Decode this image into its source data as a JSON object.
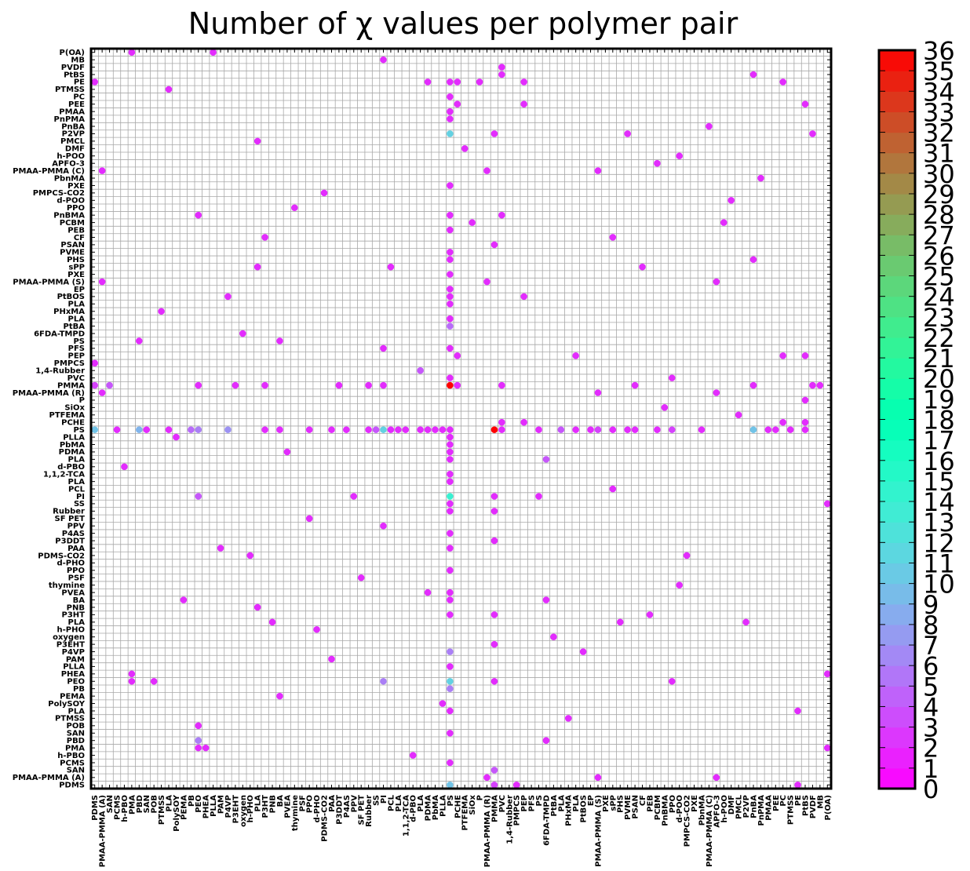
{
  "chart_data": {
    "type": "scatter",
    "title": "Number of χ values per polymer pair",
    "xlabel": "",
    "ylabel": "",
    "grid": true,
    "legend": "colorbar-right",
    "colormap": "rainbow",
    "colorbar": {
      "min": 0,
      "max": 36,
      "ticks": [
        "0",
        "1",
        "2",
        "3",
        "4",
        "5",
        "6",
        "7",
        "8",
        "9",
        "10",
        "11",
        "12",
        "13",
        "14",
        "15",
        "16",
        "17",
        "18",
        "19",
        "20",
        "21",
        "22",
        "23",
        "24",
        "25",
        "26",
        "27",
        "28",
        "29",
        "30",
        "31",
        "32",
        "33",
        "34",
        "35",
        "36"
      ]
    },
    "x_categories": [
      "PDMS",
      "PMAA-PMMA (A)",
      "SAN",
      "PCMS",
      "h-PBO",
      "PMA",
      "PBD",
      "SAN",
      "POB",
      "PTMSS",
      "PLA",
      "PolySOY",
      "PEMA",
      "PB",
      "PEO",
      "PHEA",
      "PLLA",
      "PAM",
      "P4VP",
      "P3EHT",
      "oxygen",
      "h-PHO",
      "PLA",
      "P3HT",
      "PNB",
      "BA",
      "PVEA",
      "thymine",
      "PSF",
      "PPO",
      "d-PHO",
      "PDMS-CO2",
      "PAA",
      "P3DDT",
      "P4AS",
      "PPV",
      "SF PET",
      "Rubber",
      "SS",
      "PI",
      "PCL",
      "PLA",
      "1,1,2-TCA",
      "d-PBO",
      "PLA",
      "PDMA",
      "PbMA",
      "PLLA",
      "PS",
      "PCHE",
      "PTFEMA",
      "SiOx",
      "P",
      "PMAA-PMMA (R)",
      "PMMA",
      "PVC",
      "1,4-Rubber",
      "PMPCS",
      "PEP",
      "PFS",
      "PS",
      "6FDA-TMPD",
      "PtBA",
      "PLA",
      "PHxMA",
      "PLA",
      "PtBOS",
      "EP",
      "PMAA-PMMA (S)",
      "PXE",
      "sPP",
      "PHS",
      "PVME",
      "PSAN",
      "CF",
      "PEB",
      "PCBM",
      "PnBMA",
      "PPO",
      "d-POO",
      "PMPCS-CO2",
      "PXE",
      "PbnMA",
      "PMAA-PMMA (C)",
      "APFO-3",
      "h-POO",
      "DMF",
      "PMCL",
      "P2VP",
      "PnBA",
      "PnPMA",
      "PMAA",
      "PEE",
      "PC",
      "PTMSS",
      "PE",
      "PtBS",
      "PVDF",
      "MB",
      "P(OA)"
    ],
    "y_categories": [
      "P(OA)",
      "MB",
      "PVDF",
      "PtBS",
      "PE",
      "PTMSS",
      "PC",
      "PEE",
      "PMAA",
      "PnPMA",
      "PnBA",
      "P2VP",
      "PMCL",
      "DMF",
      "h-POO",
      "APFO-3",
      "PMAA-PMMA (C)",
      "PbnMA",
      "PXE",
      "PMPCS-CO2",
      "d-POO",
      "PPO",
      "PnBMA",
      "PCBM",
      "PEB",
      "CF",
      "PSAN",
      "PVME",
      "PHS",
      "sPP",
      "PXE",
      "PMAA-PMMA (S)",
      "EP",
      "PtBOS",
      "PLA",
      "PHxMA",
      "PLA",
      "PtBA",
      "6FDA-TMPD",
      "PS",
      "PFS",
      "PEP",
      "PMPCS",
      "1,4-Rubber",
      "PVC",
      "PMMA",
      "PMAA-PMMA (R)",
      "P",
      "SiOx",
      "PTFEMA",
      "PCHE",
      "PS",
      "PLLA",
      "PbMA",
      "PDMA",
      "PLA",
      "d-PBO",
      "1,1,2-TCA",
      "PLA",
      "PCL",
      "PI",
      "SS",
      "Rubber",
      "SF PET",
      "PPV",
      "P4AS",
      "P3DDT",
      "PAA",
      "PDMS-CO2",
      "d-PHO",
      "PPO",
      "PSF",
      "thymine",
      "PVEA",
      "BA",
      "PNB",
      "P3HT",
      "PLA",
      "h-PHO",
      "oxygen",
      "P3EHT",
      "P4VP",
      "PAM",
      "PLLA",
      "PHEA",
      "PEO",
      "PB",
      "PEMA",
      "PolySOY",
      "PLA",
      "PTMSS",
      "POB",
      "SAN",
      "PBD",
      "PMA",
      "h-PBO",
      "PCMS",
      "SAN",
      "PMAA-PMMA (A)",
      "PDMS"
    ],
    "x_range": [
      0,
      100
    ],
    "y_range": [
      0,
      100
    ],
    "points": [
      [
        5,
        0,
        2
      ],
      [
        16,
        0,
        2
      ],
      [
        39,
        1,
        2
      ],
      [
        55,
        2,
        2
      ],
      [
        55,
        3,
        2
      ],
      [
        89,
        3,
        2
      ],
      [
        0,
        4,
        2
      ],
      [
        45,
        4,
        2
      ],
      [
        48,
        4,
        2
      ],
      [
        49,
        4,
        2
      ],
      [
        52,
        4,
        2
      ],
      [
        58,
        4,
        2
      ],
      [
        93,
        4,
        2
      ],
      [
        10,
        5,
        2
      ],
      [
        48,
        6,
        2
      ],
      [
        49,
        7,
        2
      ],
      [
        58,
        7,
        2
      ],
      [
        96,
        7,
        2
      ],
      [
        48,
        8,
        2
      ],
      [
        48,
        9,
        2
      ],
      [
        83,
        10,
        2
      ],
      [
        48,
        11,
        11
      ],
      [
        54,
        11,
        2
      ],
      [
        72,
        11,
        2
      ],
      [
        97,
        11,
        2
      ],
      [
        22,
        12,
        2
      ],
      [
        50,
        13,
        2
      ],
      [
        79,
        14,
        2
      ],
      [
        76,
        15,
        2
      ],
      [
        1,
        16,
        2
      ],
      [
        53,
        16,
        2
      ],
      [
        68,
        16,
        2
      ],
      [
        90,
        17,
        2
      ],
      [
        48,
        18,
        2
      ],
      [
        31,
        19,
        2
      ],
      [
        86,
        20,
        2
      ],
      [
        27,
        21,
        2
      ],
      [
        14,
        22,
        2
      ],
      [
        48,
        22,
        2
      ],
      [
        55,
        22,
        2
      ],
      [
        85,
        23,
        2
      ],
      [
        51,
        23,
        2
      ],
      [
        48,
        24,
        2
      ],
      [
        23,
        25,
        2
      ],
      [
        70,
        25,
        2
      ],
      [
        54,
        26,
        2
      ],
      [
        48,
        27,
        2
      ],
      [
        48,
        28,
        2
      ],
      [
        89,
        28,
        2
      ],
      [
        22,
        29,
        2
      ],
      [
        40,
        29,
        2
      ],
      [
        74,
        29,
        2
      ],
      [
        48,
        30,
        2
      ],
      [
        1,
        31,
        2
      ],
      [
        53,
        31,
        2
      ],
      [
        84,
        31,
        2
      ],
      [
        48,
        32,
        2
      ],
      [
        18,
        33,
        2
      ],
      [
        48,
        33,
        2
      ],
      [
        58,
        33,
        2
      ],
      [
        48,
        34,
        2
      ],
      [
        9,
        35,
        2
      ],
      [
        48,
        36,
        2
      ],
      [
        48,
        37,
        5
      ],
      [
        20,
        38,
        2
      ],
      [
        6,
        39,
        2
      ],
      [
        25,
        39,
        2
      ],
      [
        39,
        40,
        2
      ],
      [
        48,
        40,
        2
      ],
      [
        49,
        41,
        2
      ],
      [
        65,
        41,
        2
      ],
      [
        93,
        41,
        2
      ],
      [
        96,
        41,
        2
      ],
      [
        0,
        42,
        2
      ],
      [
        44,
        43,
        4
      ],
      [
        48,
        44,
        2
      ],
      [
        78,
        44,
        2
      ],
      [
        0,
        45,
        3
      ],
      [
        2,
        45,
        4
      ],
      [
        14,
        45,
        2
      ],
      [
        19,
        45,
        2
      ],
      [
        23,
        45,
        2
      ],
      [
        33,
        45,
        2
      ],
      [
        37,
        45,
        2
      ],
      [
        39,
        45,
        2
      ],
      [
        48,
        45,
        36
      ],
      [
        49,
        45,
        2
      ],
      [
        55,
        45,
        2
      ],
      [
        73,
        45,
        2
      ],
      [
        89,
        45,
        2
      ],
      [
        97,
        45,
        2
      ],
      [
        98,
        45,
        2
      ],
      [
        1,
        46,
        2
      ],
      [
        68,
        46,
        2
      ],
      [
        84,
        46,
        2
      ],
      [
        96,
        47,
        2
      ],
      [
        77,
        48,
        2
      ],
      [
        87,
        49,
        2
      ],
      [
        55,
        50,
        2
      ],
      [
        58,
        50,
        2
      ],
      [
        93,
        50,
        2
      ],
      [
        96,
        50,
        2
      ],
      [
        0,
        51,
        10
      ],
      [
        3,
        51,
        2
      ],
      [
        6,
        51,
        9
      ],
      [
        7,
        51,
        2
      ],
      [
        10,
        51,
        2
      ],
      [
        13,
        51,
        5
      ],
      [
        14,
        51,
        6
      ],
      [
        18,
        51,
        7
      ],
      [
        23,
        51,
        2
      ],
      [
        25,
        51,
        2
      ],
      [
        29,
        51,
        2
      ],
      [
        32,
        51,
        2
      ],
      [
        34,
        51,
        2
      ],
      [
        37,
        51,
        2
      ],
      [
        38,
        51,
        4
      ],
      [
        39,
        51,
        11
      ],
      [
        40,
        51,
        2
      ],
      [
        41,
        51,
        2
      ],
      [
        42,
        51,
        2
      ],
      [
        44,
        51,
        2
      ],
      [
        45,
        51,
        2
      ],
      [
        46,
        51,
        2
      ],
      [
        47,
        51,
        2
      ],
      [
        48,
        51,
        2
      ],
      [
        54,
        51,
        36
      ],
      [
        55,
        51,
        2
      ],
      [
        60,
        51,
        2
      ],
      [
        63,
        51,
        4
      ],
      [
        65,
        51,
        2
      ],
      [
        67,
        51,
        2
      ],
      [
        68,
        51,
        3
      ],
      [
        70,
        51,
        2
      ],
      [
        72,
        51,
        2
      ],
      [
        73,
        51,
        2
      ],
      [
        76,
        51,
        2
      ],
      [
        78,
        51,
        3
      ],
      [
        82,
        51,
        2
      ],
      [
        89,
        51,
        10
      ],
      [
        91,
        51,
        2
      ],
      [
        92,
        51,
        2
      ],
      [
        94,
        51,
        2
      ],
      [
        96,
        51,
        2
      ],
      [
        11,
        52,
        2
      ],
      [
        48,
        52,
        2
      ],
      [
        48,
        53,
        2
      ],
      [
        26,
        54,
        2
      ],
      [
        48,
        54,
        2
      ],
      [
        48,
        55,
        2
      ],
      [
        61,
        55,
        4
      ],
      [
        4,
        56,
        2
      ],
      [
        48,
        57,
        2
      ],
      [
        48,
        58,
        2
      ],
      [
        70,
        59,
        2
      ],
      [
        48,
        60,
        14
      ],
      [
        14,
        60,
        4
      ],
      [
        35,
        60,
        2
      ],
      [
        54,
        60,
        2
      ],
      [
        60,
        60,
        2
      ],
      [
        48,
        61,
        2
      ],
      [
        99,
        61,
        2
      ],
      [
        48,
        62,
        2
      ],
      [
        54,
        62,
        2
      ],
      [
        29,
        63,
        2
      ],
      [
        39,
        64,
        2
      ],
      [
        48,
        65,
        2
      ],
      [
        54,
        66,
        2
      ],
      [
        17,
        67,
        2
      ],
      [
        48,
        67,
        2
      ],
      [
        21,
        68,
        2
      ],
      [
        80,
        68,
        2
      ],
      [
        48,
        70,
        2
      ],
      [
        36,
        71,
        2
      ],
      [
        79,
        72,
        2
      ],
      [
        45,
        73,
        2
      ],
      [
        48,
        73,
        2
      ],
      [
        12,
        74,
        2
      ],
      [
        48,
        74,
        2
      ],
      [
        61,
        74,
        2
      ],
      [
        22,
        75,
        2
      ],
      [
        48,
        76,
        2
      ],
      [
        54,
        76,
        2
      ],
      [
        75,
        76,
        2
      ],
      [
        24,
        77,
        2
      ],
      [
        71,
        77,
        2
      ],
      [
        88,
        77,
        2
      ],
      [
        30,
        78,
        2
      ],
      [
        62,
        79,
        2
      ],
      [
        54,
        80,
        2
      ],
      [
        66,
        81,
        2
      ],
      [
        48,
        81,
        6
      ],
      [
        32,
        82,
        2
      ],
      [
        48,
        83,
        2
      ],
      [
        5,
        84,
        2
      ],
      [
        99,
        84,
        2
      ],
      [
        5,
        85,
        2
      ],
      [
        8,
        85,
        2
      ],
      [
        39,
        85,
        6
      ],
      [
        48,
        85,
        11
      ],
      [
        54,
        85,
        2
      ],
      [
        78,
        85,
        2
      ],
      [
        48,
        86,
        6
      ],
      [
        25,
        87,
        2
      ],
      [
        47,
        88,
        2
      ],
      [
        48,
        89,
        2
      ],
      [
        95,
        89,
        2
      ],
      [
        64,
        90,
        2
      ],
      [
        14,
        91,
        2
      ],
      [
        48,
        92,
        2
      ],
      [
        14,
        93,
        6
      ],
      [
        61,
        93,
        2
      ],
      [
        14,
        94,
        2
      ],
      [
        15,
        94,
        2
      ],
      [
        99,
        94,
        2
      ],
      [
        43,
        95,
        2
      ],
      [
        48,
        96,
        2
      ],
      [
        54,
        97,
        4
      ],
      [
        53,
        98,
        2
      ],
      [
        68,
        98,
        2
      ],
      [
        84,
        98,
        2
      ],
      [
        48,
        99,
        10
      ],
      [
        54,
        99,
        3
      ],
      [
        57,
        99,
        2
      ],
      [
        95,
        99,
        2
      ]
    ]
  }
}
